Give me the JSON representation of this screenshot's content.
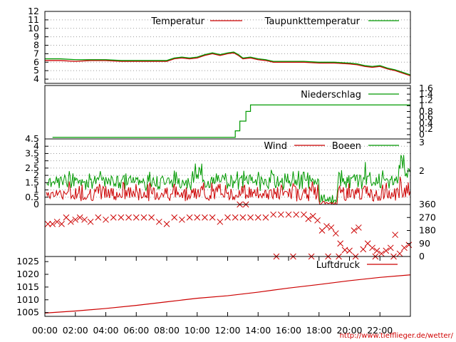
{
  "chart_data": {
    "type": "line",
    "x_ticks": [
      "00:00",
      "02:00",
      "04:00",
      "06:00",
      "08:00",
      "10:00",
      "12:00",
      "14:00",
      "16:00",
      "18:00",
      "20:00",
      "22:00"
    ],
    "x_range_hours": [
      0,
      24
    ],
    "footer_url": "http://www.tiefflieger.de/wetter/",
    "panels": [
      {
        "id": "temperature",
        "left_ticks": [
          "4",
          "5",
          "6",
          "7",
          "8",
          "9",
          "10",
          "11",
          "12"
        ],
        "ylim": [
          3.5,
          12
        ],
        "grid": true,
        "series": [
          {
            "name": "Temperatur",
            "color": "#cc0000",
            "x": [
              0,
              1,
              2,
              3,
              4,
              5,
              6,
              7,
              8,
              8.5,
              9,
              9.5,
              10,
              10.5,
              11,
              11.5,
              12,
              12.4,
              12.7,
              13,
              13.5,
              14,
              14.5,
              15,
              16,
              17,
              18,
              19,
              20,
              20.5,
              21,
              21.5,
              22,
              22.5,
              23,
              23.5,
              24
            ],
            "y": [
              6.2,
              6.2,
              6.1,
              6.2,
              6.2,
              6.1,
              6.1,
              6.1,
              6.1,
              6.4,
              6.5,
              6.4,
              6.5,
              6.8,
              7,
              6.8,
              7,
              7.1,
              6.8,
              6.4,
              6.5,
              6.3,
              6.2,
              6,
              6,
              6,
              5.9,
              5.9,
              5.8,
              5.7,
              5.5,
              5.4,
              5.5,
              5.2,
              5,
              4.7,
              4.4
            ]
          },
          {
            "name": "Taupunkttemperatur",
            "color": "#009900",
            "x": [
              0,
              1,
              2,
              3,
              4,
              5,
              6,
              7,
              8,
              8.5,
              9,
              9.5,
              10,
              10.5,
              11,
              11.5,
              12,
              12.4,
              12.7,
              13,
              13.5,
              14,
              14.5,
              15,
              16,
              17,
              18,
              19,
              20,
              20.5,
              21,
              21.5,
              22,
              22.5,
              23,
              23.5,
              24
            ],
            "y": [
              6.4,
              6.4,
              6.3,
              6.3,
              6.3,
              6.2,
              6.2,
              6.2,
              6.2,
              6.5,
              6.6,
              6.5,
              6.6,
              6.9,
              7.1,
              6.9,
              7.1,
              7.2,
              6.9,
              6.5,
              6.6,
              6.4,
              6.3,
              6.1,
              6.1,
              6.1,
              6,
              6,
              5.9,
              5.8,
              5.6,
              5.5,
              5.6,
              5.3,
              5.1,
              4.8,
              4.5
            ]
          }
        ]
      },
      {
        "id": "precipitation",
        "right_ticks": [
          "0",
          "0.2",
          "0.4",
          "0.6",
          "0.8",
          "1",
          "1.2",
          "1.4",
          "1.6"
        ],
        "ylim": [
          -0.05,
          1.6
        ],
        "series": [
          {
            "name": "Niederschlag",
            "color": "#009900",
            "x": [
              0.5,
              12.5,
              12.5,
              12.8,
              12.8,
              13.2,
              13.2,
              13.5,
              13.5,
              14,
              24
            ],
            "y": [
              0,
              0,
              0.2,
              0.2,
              0.5,
              0.5,
              0.8,
              0.8,
              1,
              1,
              1
            ]
          }
        ]
      },
      {
        "id": "wind",
        "left_ticks": [
          "0",
          "0.5",
          "1",
          "1.5",
          "2",
          "2.5",
          "3",
          "3.5",
          "4",
          "4.5"
        ],
        "right_ticks": [
          "2",
          "3"
        ],
        "ylim": [
          0,
          4.5
        ],
        "series": [
          {
            "name": "Wind",
            "color": "#cc0000",
            "profile": "wind"
          },
          {
            "name": "Boeen",
            "color": "#009900",
            "profile": "gust"
          }
        ]
      },
      {
        "id": "wind_direction",
        "right_ticks": [
          "0",
          "90",
          "180",
          "270",
          "360"
        ],
        "ylim": [
          0,
          360
        ],
        "series": [
          {
            "color": "#cc0000",
            "marker": "x",
            "x": [
              0.2,
              0.5,
              0.8,
              1.1,
              1.4,
              1.7,
              2,
              2.3,
              2.6,
              3,
              3.5,
              4,
              4.5,
              5,
              5.5,
              6,
              6.5,
              7,
              7.5,
              8,
              8.5,
              9,
              9.5,
              10,
              10.5,
              11,
              11.5,
              12,
              12.5,
              13,
              13.5,
              14,
              14.5,
              15,
              15.5,
              16,
              16.5,
              17,
              17.3,
              17.6,
              17.9,
              18.2,
              18.5,
              18.8,
              19.1,
              19.4,
              19.7,
              20,
              20.3,
              20.6,
              20.9,
              21.2,
              21.5,
              21.8,
              22.1,
              22.4,
              22.7,
              23,
              23.3,
              23.6,
              23.9,
              12.8,
              13.2,
              15.2,
              16.3,
              17.5,
              18.6,
              19.3,
              20.4,
              21.7,
              22.9
            ],
            "y": [
              225,
              225,
              240,
              225,
              270,
              240,
              255,
              270,
              255,
              240,
              270,
              255,
              270,
              270,
              270,
              270,
              270,
              270,
              240,
              225,
              270,
              255,
              270,
              270,
              270,
              270,
              240,
              270,
              270,
              270,
              270,
              270,
              270,
              290,
              290,
              290,
              290,
              290,
              260,
              280,
              250,
              180,
              210,
              200,
              160,
              90,
              45,
              40,
              180,
              200,
              50,
              90,
              60,
              40,
              20,
              40,
              60,
              150,
              20,
              60,
              80,
              360,
              360,
              0,
              0,
              0,
              0,
              0,
              0,
              0,
              0
            ]
          }
        ]
      },
      {
        "id": "pressure",
        "left_ticks": [
          "1005",
          "1010",
          "1015",
          "1020",
          "1025"
        ],
        "ylim": [
          1003.5,
          1027
        ],
        "series": [
          {
            "name": "Luftdruck",
            "color": "#cc0000",
            "x": [
              0,
              2,
              4,
              6,
              8,
              10,
              12,
              14,
              16,
              18,
              20,
              22,
              24
            ],
            "y": [
              1004.8,
              1005.6,
              1006.6,
              1007.8,
              1009.2,
              1010.6,
              1011.6,
              1013,
              1014.6,
              1016,
              1017.5,
              1018.8,
              1019.8
            ]
          }
        ]
      }
    ]
  }
}
